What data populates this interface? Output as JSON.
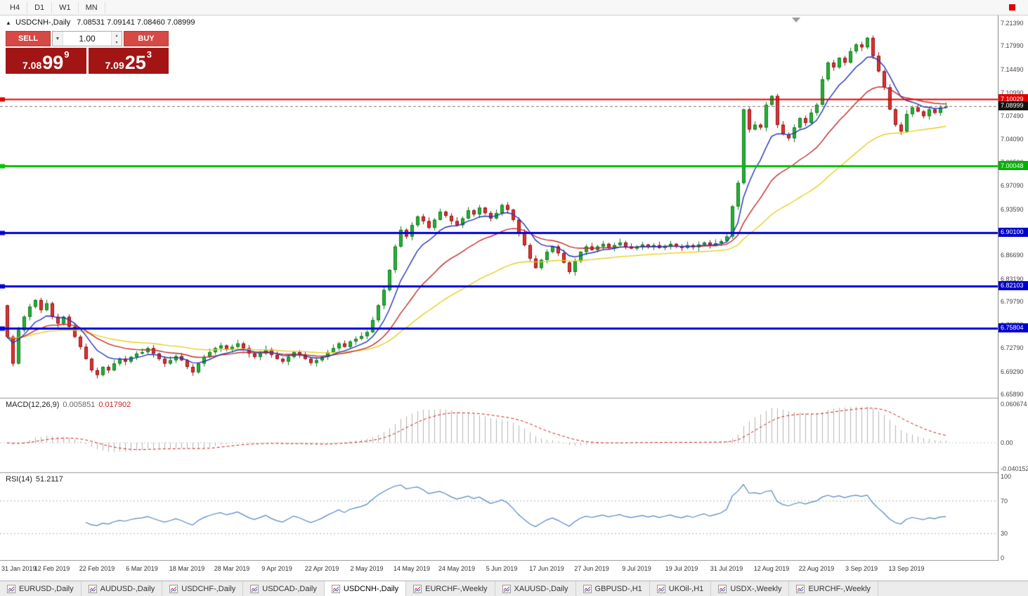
{
  "toolbar": {
    "timeframes": [
      "H4",
      "D1",
      "W1",
      "MN"
    ]
  },
  "icons": {
    "collapse_panel": "▲",
    "volume_dropdown": "▼",
    "spinner_up": "▴",
    "spinner_down": "▾"
  },
  "chart": {
    "symbol_period": "USDCNH-,Daily",
    "ohlc": "7.08531 7.09141 7.08460 7.08999"
  },
  "trade_panel": {
    "sell_label": "SELL",
    "buy_label": "BUY",
    "volume": "1.00",
    "sell_price_main": "7.08",
    "sell_price_pips": "99",
    "sell_price_sup": "9",
    "buy_price_main": "7.09",
    "buy_price_pips": "25",
    "buy_price_sup": "3"
  },
  "macd": {
    "name": "MACD(12,26,9)",
    "main_value": "0.005851",
    "signal_value": "0.017902",
    "axis": [
      {
        "text": "0.060674",
        "value": 0.060674
      },
      {
        "text": "0.00",
        "value": 0
      },
      {
        "text": "-0.040152",
        "value": -0.040152
      }
    ]
  },
  "rsi": {
    "name": "RSI(14)",
    "value": "51.2117",
    "axis": [
      {
        "text": "100",
        "value": 100
      },
      {
        "text": "70",
        "value": 70
      },
      {
        "text": "30",
        "value": 30
      },
      {
        "text": "0",
        "value": 0
      }
    ]
  },
  "price_scale": {
    "labels": [
      "7.21390",
      "7.17990",
      "7.14490",
      "7.10990",
      "7.07490",
      "7.04090",
      "7.00590",
      "6.97090",
      "6.93590",
      "6.90090",
      "6.86690",
      "6.83190",
      "6.79790",
      "6.76290",
      "6.72790",
      "6.69290",
      "6.65890"
    ],
    "badges": [
      {
        "text": "7.10029",
        "color": "#e00000",
        "value": 7.10029
      },
      {
        "text": "7.08999",
        "color": "#111111",
        "value": 7.08999
      },
      {
        "text": "7.00048",
        "color": "#00b300",
        "value": 7.00048
      },
      {
        "text": "6.90100",
        "color": "#0000cc",
        "value": 6.901
      },
      {
        "text": "6.82103",
        "color": "#0000cc",
        "value": 6.82103
      },
      {
        "text": "6.75804",
        "color": "#0000cc",
        "value": 6.75804
      }
    ]
  },
  "tabs": {
    "active_index": 4,
    "items": [
      "EURUSD-,Daily",
      "AUDUSD-,Daily",
      "USDCHF-,Daily",
      "USDCAD-,Daily",
      "USDCNH-,Daily",
      "EURCHF-,Weekly",
      "XAUUSD-,Daily",
      "GBPUSD-,H1",
      "UKOil-,H1",
      "USDX-,Weekly",
      "EURCHF-,Weekly"
    ]
  },
  "chart_data": {
    "type": "candlestick",
    "symbol": "USDCNH",
    "period": "Daily",
    "title": "USDCNH-,Daily",
    "ohlc_current": {
      "open": 7.08531,
      "high": 7.09141,
      "low": 7.0846,
      "close": 7.08999
    },
    "y_range": [
      6.6538,
      7.2255
    ],
    "x_labels": [
      "31 Jan 2019",
      "12 Feb 2019",
      "22 Feb 2019",
      "6 Mar 2019",
      "18 Mar 2019",
      "28 Mar 2019",
      "9 Apr 2019",
      "22 Apr 2019",
      "2 May 2019",
      "14 May 2019",
      "24 May 2019",
      "5 Jun 2019",
      "17 Jun 2019",
      "27 Jun 2019",
      "9 Jul 2019",
      "19 Jul 2019",
      "31 Jul 2019",
      "12 Aug 2019",
      "22 Aug 2019",
      "3 Sep 2019",
      "13 Sep 2019"
    ],
    "label_every": 8,
    "first_open": 6.792,
    "closes": [
      6.745,
      6.705,
      6.755,
      6.775,
      6.79,
      6.8,
      6.785,
      6.795,
      6.775,
      6.765,
      6.775,
      6.76,
      6.745,
      6.73,
      6.712,
      6.695,
      6.688,
      6.7,
      6.695,
      6.705,
      6.712,
      6.708,
      6.715,
      6.72,
      6.722,
      6.728,
      6.72,
      6.712,
      6.705,
      6.71,
      6.716,
      6.71,
      6.7,
      6.692,
      6.705,
      6.715,
      6.722,
      6.728,
      6.732,
      6.726,
      6.73,
      6.735,
      6.728,
      6.72,
      6.715,
      6.72,
      6.726,
      6.718,
      6.712,
      6.708,
      6.715,
      6.722,
      6.718,
      6.712,
      6.706,
      6.71,
      6.715,
      6.722,
      6.728,
      6.735,
      6.73,
      6.738,
      6.742,
      6.746,
      6.752,
      6.77,
      6.792,
      6.815,
      6.845,
      6.88,
      6.905,
      6.895,
      6.912,
      6.925,
      6.918,
      6.908,
      6.92,
      6.932,
      6.926,
      6.918,
      6.912,
      6.922,
      6.934,
      6.928,
      6.938,
      6.93,
      6.922,
      6.93,
      6.942,
      6.935,
      6.92,
      6.9,
      6.882,
      6.862,
      6.848,
      6.86,
      6.872,
      6.88,
      6.87,
      6.856,
      6.842,
      6.858,
      6.872,
      6.88,
      6.875,
      6.88,
      6.884,
      6.878,
      6.882,
      6.886,
      6.88,
      6.877,
      6.88,
      6.883,
      6.879,
      6.882,
      6.878,
      6.881,
      6.884,
      6.88,
      6.878,
      6.882,
      6.879,
      6.883,
      6.886,
      6.882,
      6.885,
      6.888,
      6.895,
      6.94,
      6.975,
      7.085,
      7.055,
      7.062,
      7.058,
      7.092,
      7.105,
      7.062,
      7.048,
      7.042,
      7.058,
      7.072,
      7.065,
      7.08,
      7.092,
      7.13,
      7.155,
      7.148,
      7.162,
      7.155,
      7.172,
      7.182,
      7.178,
      7.192,
      7.165,
      7.142,
      7.118,
      7.085,
      7.062,
      7.052,
      7.078,
      7.088,
      7.082,
      7.075,
      7.085,
      7.08,
      7.088,
      7.09
    ],
    "indicators": {
      "ma": [
        {
          "period": 45,
          "color": "#e8cf1e"
        },
        {
          "period": 20,
          "color": "#c62828"
        },
        {
          "period": 8,
          "color": "#2233bb"
        }
      ],
      "macd": [
        12,
        26,
        9
      ],
      "rsi": 14
    },
    "levels": [
      {
        "value": 7.10029,
        "color": "#e00000",
        "width": 2
      },
      {
        "value": 7.00048,
        "color": "#00c000",
        "width": 3
      },
      {
        "value": 6.901,
        "color": "#0000dd",
        "width": 3
      },
      {
        "value": 6.82103,
        "color": "#0000dd",
        "width": 3
      },
      {
        "value": 6.75804,
        "color": "#0000dd",
        "width": 3
      }
    ],
    "current_price": 7.08999,
    "candle_up_color": "#23b233",
    "candle_down_color": "#e23131"
  }
}
